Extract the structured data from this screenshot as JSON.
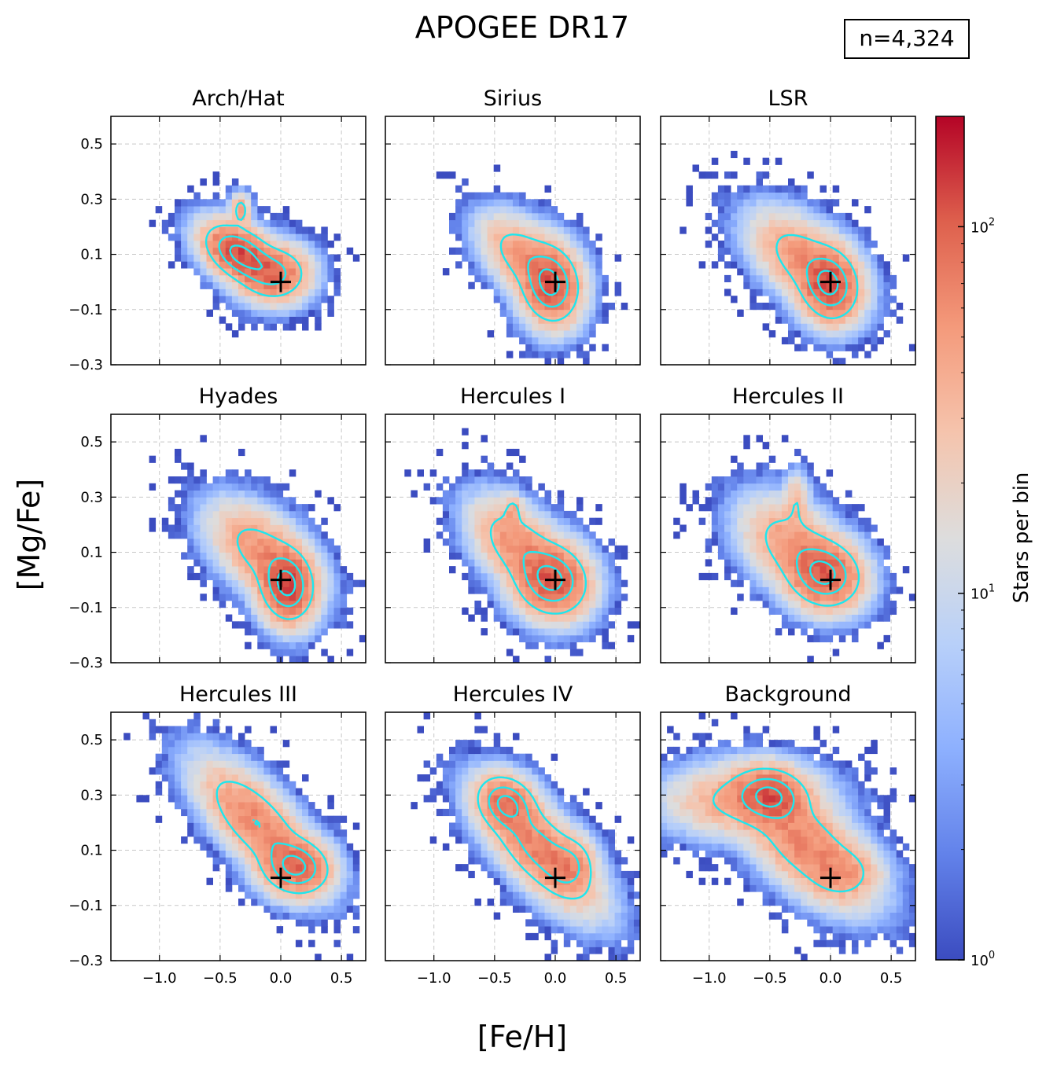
{
  "chart_data": {
    "type": "heatmap",
    "title": "APOGEE DR17",
    "annotation": "n=4,324",
    "xlabel": "[Fe/H]",
    "ylabel": "[Mg/Fe]",
    "xlim": [
      -1.4,
      0.7
    ],
    "ylim": [
      -0.3,
      0.6
    ],
    "xticks": [
      -1.0,
      -0.5,
      0.0,
      0.5
    ],
    "xtick_labels": [
      "−1.0",
      "−0.5",
      "0.0",
      "0.5"
    ],
    "yticks": [
      -0.3,
      -0.1,
      0.1,
      0.3,
      0.5
    ],
    "ytick_labels": [
      "−0.3",
      "−0.1",
      "0.1",
      "0.3",
      "0.5"
    ],
    "grid": true,
    "reference_marker": {
      "symbol": "+",
      "x": 0.0,
      "y": 0.0
    },
    "colorbar": {
      "label": "Stars per bin",
      "scale": "log",
      "range": [
        1,
        200
      ],
      "ticks": [
        1,
        10,
        100
      ],
      "tick_labels": [
        "10^0",
        "10^1",
        "10^2"
      ],
      "colormap": "coolwarm"
    },
    "contour_color": "#1ee6ee",
    "panels": [
      {
        "name": "Arch/Hat",
        "components": [
          {
            "mx": -0.33,
            "my": 0.1,
            "sx": 0.15,
            "sy": 0.055,
            "rho": -0.45,
            "w": 1.0
          },
          {
            "mx": -0.05,
            "my": 0.03,
            "sx": 0.14,
            "sy": 0.05,
            "rho": 0.0,
            "w": 0.55
          },
          {
            "mx": -0.33,
            "my": 0.26,
            "sx": 0.04,
            "sy": 0.03,
            "rho": 0.0,
            "w": 0.25
          }
        ],
        "peak": 120,
        "spread": 1.55
      },
      {
        "name": "Sirius",
        "components": [
          {
            "mx": -0.04,
            "my": -0.01,
            "sx": 0.12,
            "sy": 0.07,
            "rho": -0.1,
            "w": 1.0
          },
          {
            "mx": -0.25,
            "my": 0.09,
            "sx": 0.17,
            "sy": 0.07,
            "rho": -0.5,
            "w": 0.35
          }
        ],
        "peak": 110,
        "spread": 1.6
      },
      {
        "name": "LSR",
        "components": [
          {
            "mx": -0.01,
            "my": -0.01,
            "sx": 0.12,
            "sy": 0.065,
            "rho": -0.1,
            "w": 1.0
          },
          {
            "mx": -0.22,
            "my": 0.08,
            "sx": 0.2,
            "sy": 0.08,
            "rho": -0.5,
            "w": 0.35
          }
        ],
        "peak": 120,
        "spread": 1.6
      },
      {
        "name": "Hyades",
        "components": [
          {
            "mx": 0.05,
            "my": -0.02,
            "sx": 0.11,
            "sy": 0.065,
            "rho": -0.1,
            "w": 1.0
          },
          {
            "mx": -0.15,
            "my": 0.1,
            "sx": 0.2,
            "sy": 0.08,
            "rho": -0.5,
            "w": 0.3
          }
        ],
        "peak": 130,
        "spread": 1.6
      },
      {
        "name": "Hercules I",
        "components": [
          {
            "mx": -0.03,
            "my": 0.0,
            "sx": 0.15,
            "sy": 0.065,
            "rho": -0.1,
            "w": 1.0
          },
          {
            "mx": -0.3,
            "my": 0.12,
            "sx": 0.18,
            "sy": 0.08,
            "rho": -0.5,
            "w": 0.4
          },
          {
            "mx": -0.35,
            "my": 0.25,
            "sx": 0.04,
            "sy": 0.03,
            "rho": 0.0,
            "w": 0.2
          }
        ],
        "peak": 110,
        "spread": 1.6
      },
      {
        "name": "Hercules II",
        "components": [
          {
            "mx": -0.05,
            "my": 0.02,
            "sx": 0.15,
            "sy": 0.06,
            "rho": -0.1,
            "w": 1.0
          },
          {
            "mx": -0.3,
            "my": 0.12,
            "sx": 0.2,
            "sy": 0.08,
            "rho": -0.4,
            "w": 0.35
          },
          {
            "mx": -0.28,
            "my": 0.28,
            "sx": 0.05,
            "sy": 0.05,
            "rho": 0.0,
            "w": 0.15
          }
        ],
        "peak": 110,
        "spread": 1.6
      },
      {
        "name": "Hercules III",
        "components": [
          {
            "mx": 0.12,
            "my": 0.04,
            "sx": 0.14,
            "sy": 0.05,
            "rho": -0.1,
            "w": 1.0
          },
          {
            "mx": -0.2,
            "my": 0.2,
            "sx": 0.22,
            "sy": 0.1,
            "rho": -0.7,
            "w": 0.55
          }
        ],
        "peak": 100,
        "spread": 1.65
      },
      {
        "name": "Hercules IV",
        "components": [
          {
            "mx": -0.4,
            "my": 0.27,
            "sx": 0.12,
            "sy": 0.05,
            "rho": -0.2,
            "w": 1.0
          },
          {
            "mx": -0.12,
            "my": 0.1,
            "sx": 0.22,
            "sy": 0.1,
            "rho": -0.7,
            "w": 0.8
          },
          {
            "mx": 0.12,
            "my": 0.05,
            "sx": 0.1,
            "sy": 0.05,
            "rho": 0.0,
            "w": 0.45
          }
        ],
        "peak": 90,
        "spread": 1.7
      },
      {
        "name": "Background",
        "components": [
          {
            "mx": -0.5,
            "my": 0.3,
            "sx": 0.15,
            "sy": 0.05,
            "rho": -0.1,
            "w": 1.0
          },
          {
            "mx": -0.7,
            "my": 0.28,
            "sx": 0.3,
            "sy": 0.06,
            "rho": 0.0,
            "w": 0.3
          },
          {
            "mx": -0.2,
            "my": 0.12,
            "sx": 0.25,
            "sy": 0.1,
            "rho": -0.6,
            "w": 0.5
          },
          {
            "mx": 0.1,
            "my": 0.02,
            "sx": 0.15,
            "sy": 0.05,
            "rho": 0.0,
            "w": 0.25
          }
        ],
        "peak": 120,
        "spread": 1.6
      }
    ]
  }
}
